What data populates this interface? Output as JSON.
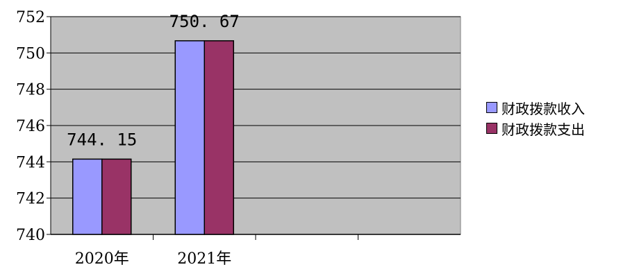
{
  "chart_data": {
    "type": "bar",
    "categories": [
      "2020年",
      "2021年",
      "",
      ""
    ],
    "series": [
      {
        "name": "财政拨款收入",
        "values": [
          744.15,
          750.67,
          null,
          null
        ],
        "color": "#9999ff"
      },
      {
        "name": "财政拨款支出",
        "values": [
          744.15,
          750.67,
          null,
          null
        ],
        "color": "#993366"
      }
    ],
    "data_labels": [
      "744. 15",
      "750. 67"
    ],
    "yticks": [
      "740",
      "742",
      "744",
      "746",
      "748",
      "750",
      "752"
    ],
    "ylim": [
      740,
      752
    ],
    "plot_background": "#c0c0c0",
    "grid": true,
    "legend_position": "right"
  }
}
